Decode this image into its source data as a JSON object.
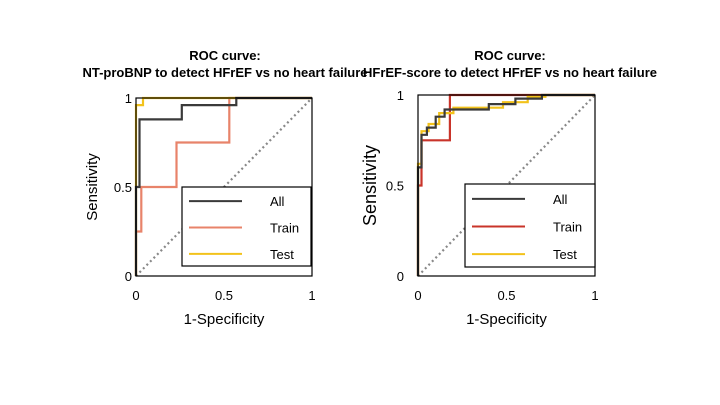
{
  "chart_data": [
    {
      "type": "line",
      "title": [
        "ROC curve:",
        "NT-proBNP to detect HFrEF vs no heart failure"
      ],
      "xlabel": "1-Specificity",
      "ylabel": "Sensitivity",
      "xlim": [
        0,
        1
      ],
      "ylim": [
        0,
        1
      ],
      "xticks": [
        "0",
        "0.5",
        "1"
      ],
      "yticks": [
        "0",
        "0.5",
        "1"
      ],
      "diagonal": true,
      "legend": {
        "placement": "bottom-right"
      },
      "series": [
        {
          "name": "All",
          "color": "#3a3a3a",
          "points": [
            [
              0,
              0
            ],
            [
              0,
              0.5
            ],
            [
              0.02,
              0.5
            ],
            [
              0.02,
              0.88
            ],
            [
              0.26,
              0.88
            ],
            [
              0.26,
              0.96
            ],
            [
              0.57,
              0.96
            ],
            [
              0.57,
              1
            ],
            [
              1,
              1
            ]
          ]
        },
        {
          "name": "Train",
          "color": "#e8836a",
          "points": [
            [
              0,
              0
            ],
            [
              0,
              0.25
            ],
            [
              0.03,
              0.25
            ],
            [
              0.03,
              0.5
            ],
            [
              0.23,
              0.5
            ],
            [
              0.23,
              0.75
            ],
            [
              0.53,
              0.75
            ],
            [
              0.53,
              1
            ],
            [
              1,
              1
            ]
          ]
        },
        {
          "name": "Test",
          "color": "#f2c21b",
          "points": [
            [
              0,
              0
            ],
            [
              0,
              0.96
            ],
            [
              0.04,
              0.96
            ],
            [
              0.04,
              1
            ],
            [
              1,
              1
            ]
          ]
        }
      ]
    },
    {
      "type": "line",
      "title": [
        "ROC curve:",
        "HFrEF-score to detect HFrEF vs no heart failure"
      ],
      "xlabel": "1-Specificity",
      "ylabel": "Sensitivity",
      "xlim": [
        0,
        1
      ],
      "ylim": [
        0,
        1
      ],
      "xticks": [
        "0",
        "0.5",
        "1"
      ],
      "yticks": [
        "0",
        "0.5",
        "1"
      ],
      "diagonal": true,
      "legend": {
        "placement": "bottom-right"
      },
      "series": [
        {
          "name": "All",
          "color": "#3a3a3a",
          "points": [
            [
              0,
              0
            ],
            [
              0,
              0.6
            ],
            [
              0.02,
              0.6
            ],
            [
              0.02,
              0.78
            ],
            [
              0.05,
              0.78
            ],
            [
              0.05,
              0.82
            ],
            [
              0.1,
              0.82
            ],
            [
              0.1,
              0.88
            ],
            [
              0.15,
              0.88
            ],
            [
              0.15,
              0.92
            ],
            [
              0.4,
              0.92
            ],
            [
              0.4,
              0.95
            ],
            [
              0.55,
              0.95
            ],
            [
              0.55,
              0.98
            ],
            [
              0.7,
              0.98
            ],
            [
              0.7,
              1
            ],
            [
              1,
              1
            ]
          ]
        },
        {
          "name": "Train",
          "color": "#c9342a",
          "points": [
            [
              0,
              0
            ],
            [
              0,
              0.5
            ],
            [
              0.02,
              0.5
            ],
            [
              0.02,
              0.75
            ],
            [
              0.18,
              0.75
            ],
            [
              0.18,
              1
            ],
            [
              1,
              1
            ]
          ]
        },
        {
          "name": "Test",
          "color": "#f2c21b",
          "points": [
            [
              0,
              0
            ],
            [
              0,
              0.62
            ],
            [
              0.02,
              0.62
            ],
            [
              0.02,
              0.8
            ],
            [
              0.06,
              0.8
            ],
            [
              0.06,
              0.84
            ],
            [
              0.12,
              0.84
            ],
            [
              0.12,
              0.9
            ],
            [
              0.2,
              0.9
            ],
            [
              0.2,
              0.93
            ],
            [
              0.48,
              0.93
            ],
            [
              0.48,
              0.96
            ],
            [
              0.62,
              0.96
            ],
            [
              0.62,
              0.99
            ],
            [
              0.72,
              0.99
            ],
            [
              0.72,
              1
            ],
            [
              1,
              1
            ]
          ]
        }
      ]
    }
  ]
}
